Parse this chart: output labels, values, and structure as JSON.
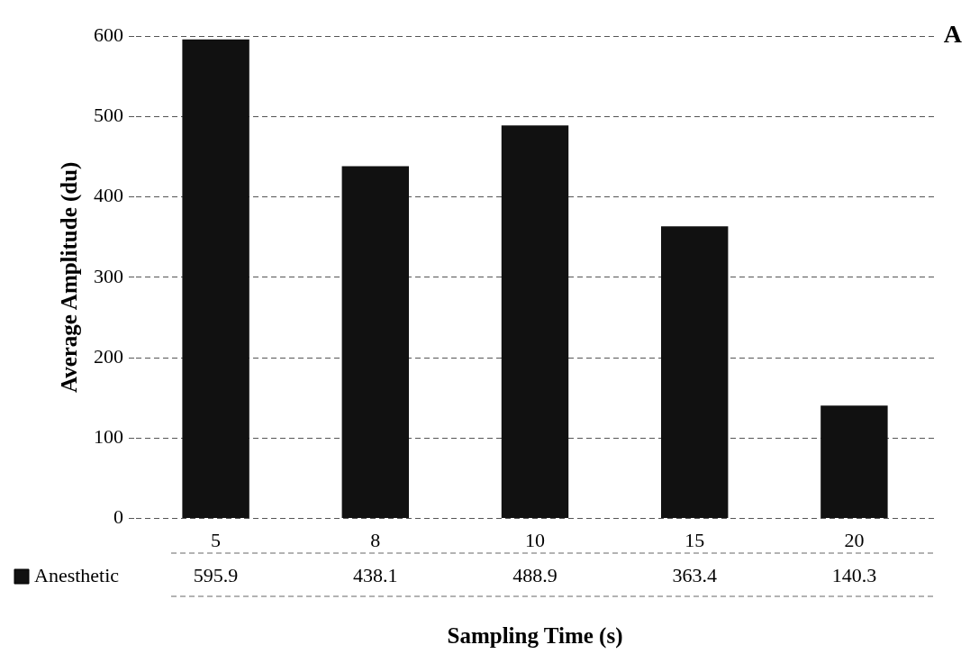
{
  "chart_data": {
    "type": "bar",
    "xlabel": "Sampling Time (s)",
    "ylabel": "Average Amplitude (du)",
    "categories": [
      "5",
      "8",
      "10",
      "15",
      "20"
    ],
    "series": [
      {
        "name": "Anesthetic",
        "color": "#111111",
        "values": [
          595.9,
          438.1,
          488.9,
          363.4,
          140.3
        ]
      }
    ],
    "ylim": [
      0,
      600
    ],
    "yticks": [
      0,
      100,
      200,
      300,
      400,
      500,
      600
    ],
    "grid": "y",
    "legend": "bottom",
    "data_labels": true,
    "annotations": [
      "A"
    ]
  }
}
